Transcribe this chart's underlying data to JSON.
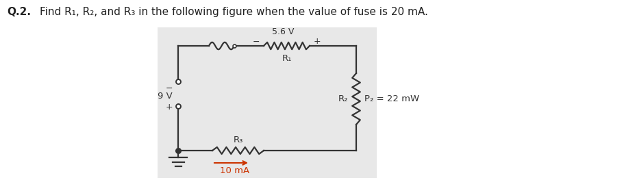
{
  "title_bold": "Q.2.",
  "title_text": "Find R₁, R₂, and R₃ in the following figure when the value of fuse is 20 mA.",
  "background_color": "#ffffff",
  "circuit_bg": "#e8e8e8",
  "label_56V": "5.6 V",
  "label_R1": "R₁",
  "label_9V": "9 V",
  "label_R2": "R₂",
  "label_P2": "P₂ = 22 mW",
  "label_R3": "R₃",
  "label_10mA": "10 mA",
  "plus": "+",
  "minus": "−",
  "arrow_color": "#cc3300",
  "text_color": "#222222"
}
